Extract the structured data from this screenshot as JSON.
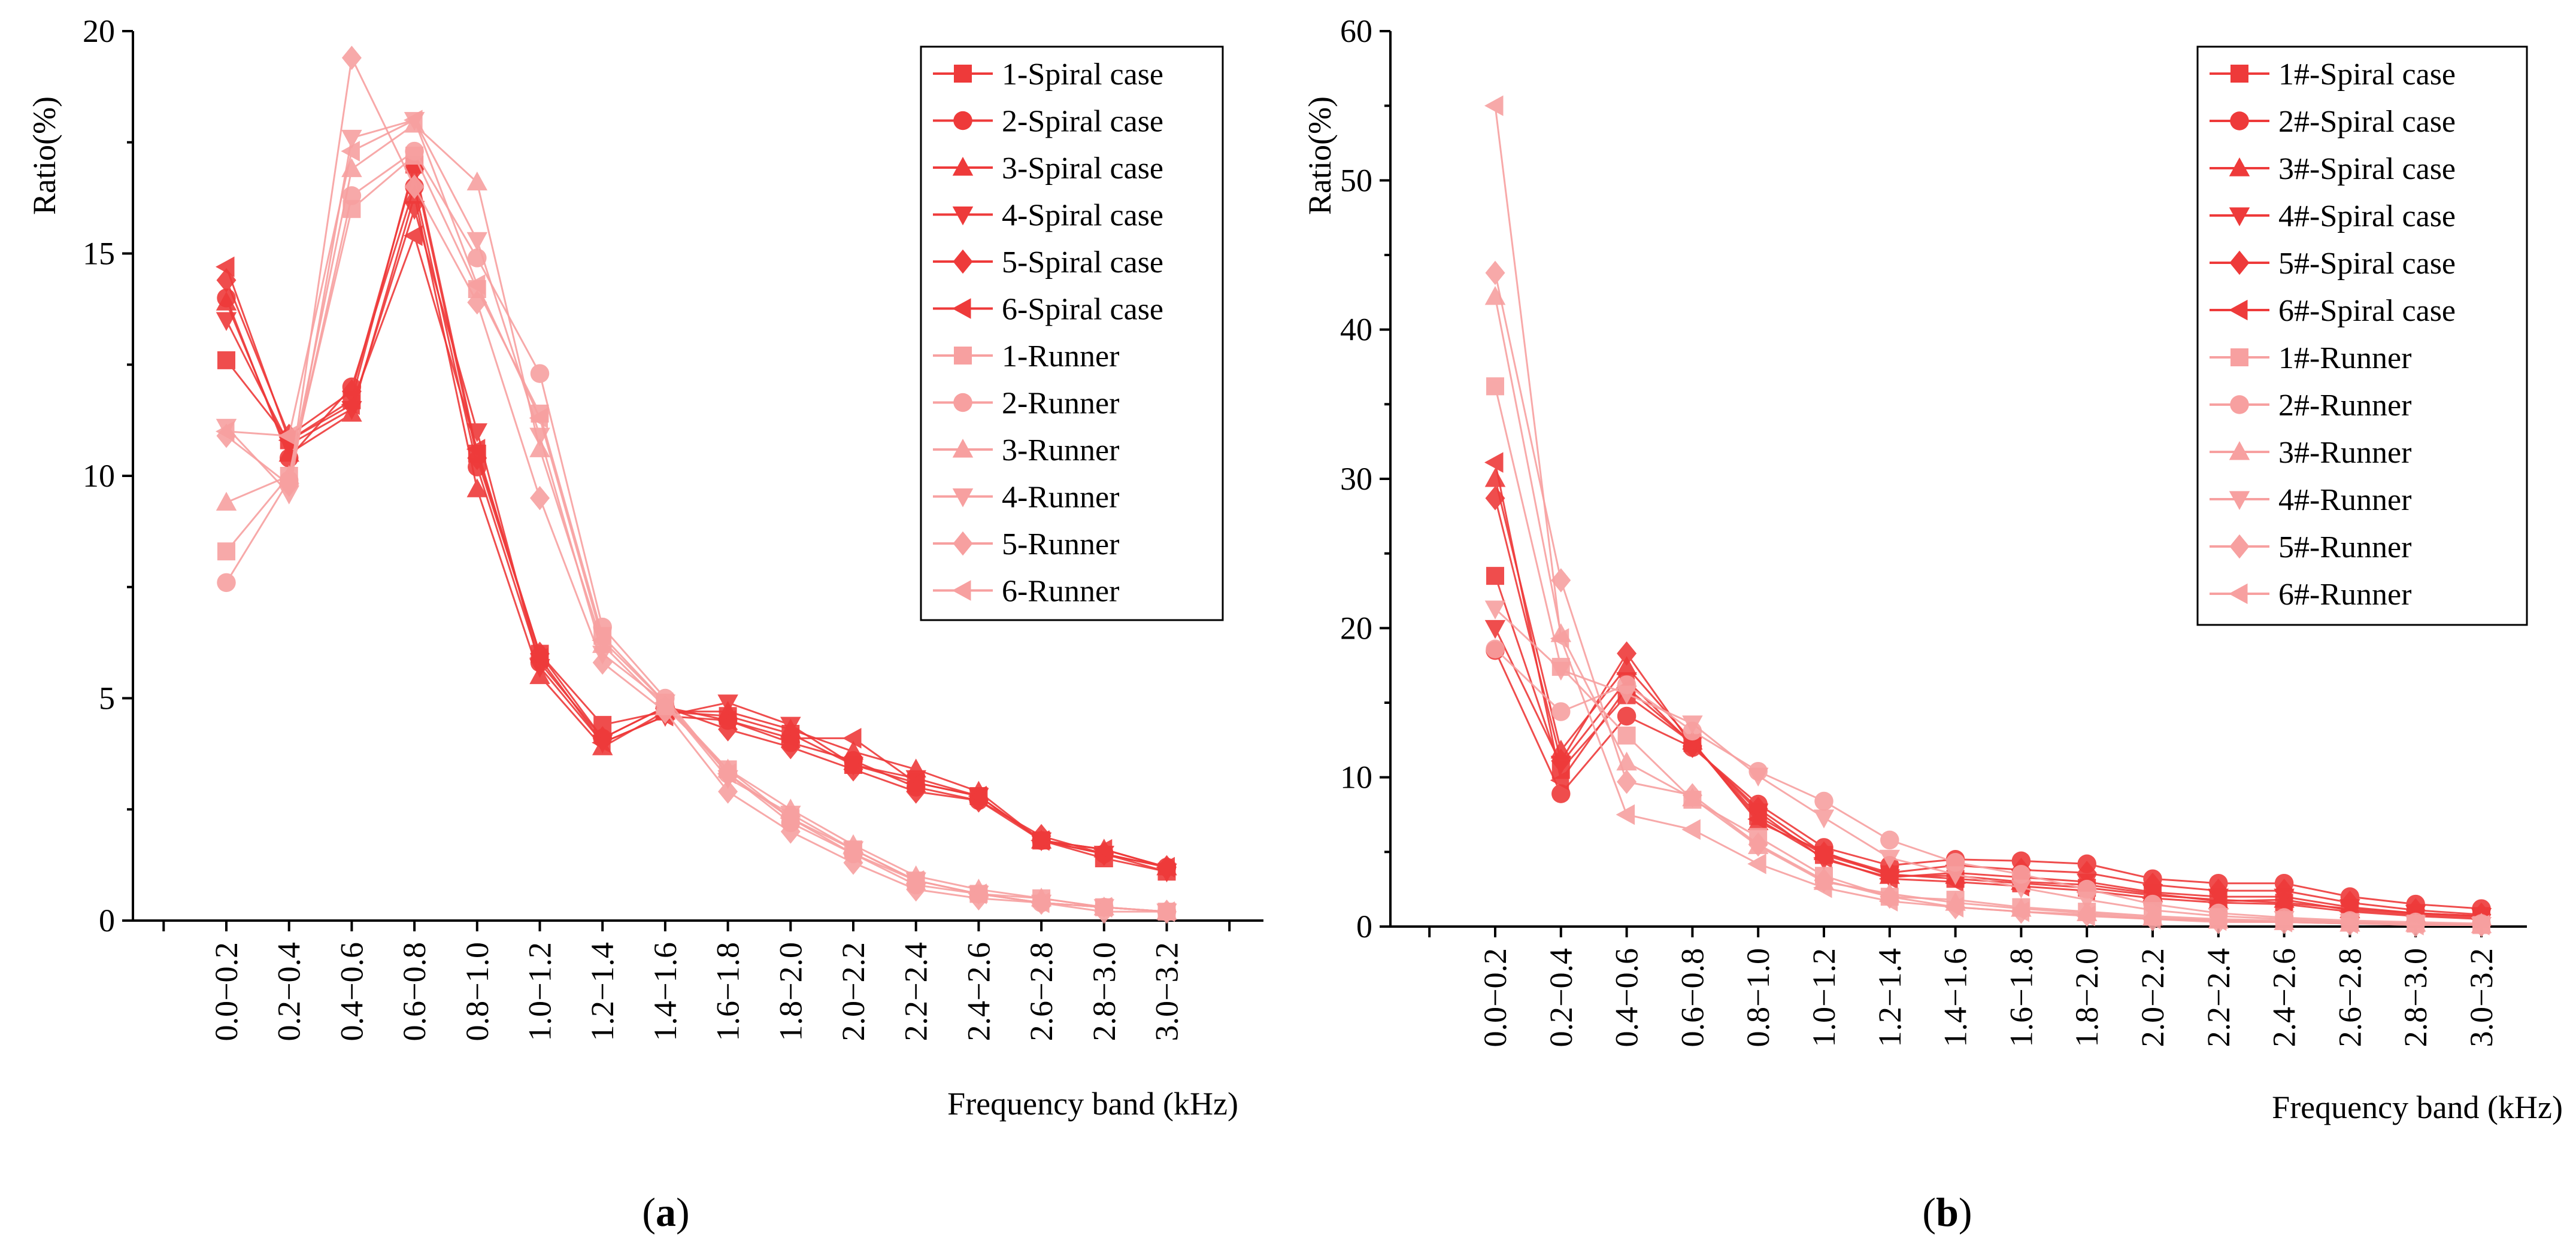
{
  "chart_data": [
    {
      "type": "line",
      "panel_label": "a",
      "xlabel": "Frequency band (kHz)",
      "ylabel": "Ratio(%)",
      "ylim": [
        0,
        20
      ],
      "yticks": [
        0,
        5,
        10,
        15,
        20
      ],
      "grid": false,
      "legend_position": "top-right",
      "categories": [
        "0.0−0.2",
        "0.2−0.4",
        "0.4−0.6",
        "0.6−0.8",
        "0.8−1.0",
        "1.0−1.2",
        "1.2−1.4",
        "1.4−1.6",
        "1.6−1.8",
        "1.8−2.0",
        "2.0−2.2",
        "2.2−2.4",
        "2.4−2.6",
        "2.6−2.8",
        "2.8−3.0",
        "3.0−3.2"
      ],
      "series": [
        {
          "name": "1-Spiral case",
          "marker": "square",
          "color": "#ee3a3a",
          "values": [
            12.6,
            10.8,
            11.7,
            17.0,
            10.5,
            6.0,
            4.4,
            4.7,
            4.6,
            4.2,
            3.5,
            3.1,
            2.8,
            1.8,
            1.4,
            1.1
          ]
        },
        {
          "name": "2-Spiral case",
          "marker": "circle",
          "color": "#ee3a3a",
          "values": [
            14.0,
            10.4,
            12.0,
            16.5,
            10.2,
            5.8,
            4.1,
            4.8,
            4.5,
            4.0,
            3.6,
            3.0,
            2.7,
            1.8,
            1.5,
            1.2
          ]
        },
        {
          "name": "3-Spiral case",
          "marker": "triangle-up",
          "color": "#ee3a3a",
          "values": [
            13.9,
            10.5,
            11.4,
            16.3,
            9.7,
            5.5,
            3.9,
            4.7,
            4.7,
            4.3,
            3.8,
            3.4,
            2.9,
            1.8,
            1.6,
            1.2
          ]
        },
        {
          "name": "4-Spiral case",
          "marker": "triangle-down",
          "color": "#ee3a3a",
          "values": [
            13.5,
            10.7,
            11.5,
            16.0,
            11.0,
            5.7,
            4.0,
            4.6,
            4.9,
            4.4,
            3.5,
            3.2,
            2.8,
            1.8,
            1.5,
            1.1
          ]
        },
        {
          "name": "5-Spiral case",
          "marker": "diamond",
          "color": "#ee3a3a",
          "values": [
            14.4,
            10.9,
            11.9,
            16.9,
            10.4,
            6.0,
            4.1,
            4.8,
            4.3,
            3.9,
            3.4,
            2.9,
            2.7,
            1.9,
            1.5,
            1.2
          ]
        },
        {
          "name": "6-Spiral case",
          "marker": "triangle-left",
          "color": "#ee3a3a",
          "values": [
            14.7,
            10.8,
            11.6,
            15.4,
            10.6,
            5.9,
            4.0,
            4.6,
            4.5,
            4.1,
            4.1,
            3.1,
            2.8,
            1.8,
            1.6,
            1.2
          ]
        },
        {
          "name": "1-Runner",
          "marker": "square",
          "color": "#f7a0a0",
          "values": [
            8.3,
            10.0,
            16.0,
            17.2,
            14.2,
            11.4,
            6.4,
            4.9,
            3.4,
            2.3,
            1.6,
            0.9,
            0.6,
            0.5,
            0.3,
            0.2
          ]
        },
        {
          "name": "2-Runner",
          "marker": "circle",
          "color": "#f7a0a0",
          "values": [
            7.6,
            9.9,
            16.3,
            17.3,
            14.9,
            12.3,
            6.6,
            5.0,
            3.3,
            2.2,
            1.5,
            0.8,
            0.6,
            0.4,
            0.3,
            0.2
          ]
        },
        {
          "name": "3-Runner",
          "marker": "triangle-up",
          "color": "#f7a0a0",
          "values": [
            9.4,
            10.0,
            16.9,
            17.9,
            16.6,
            10.6,
            6.2,
            4.8,
            3.4,
            2.5,
            1.7,
            1.0,
            0.7,
            0.5,
            0.3,
            0.2
          ]
        },
        {
          "name": "4-Runner",
          "marker": "triangle-down",
          "color": "#f7a0a0",
          "values": [
            11.1,
            9.6,
            17.6,
            18.0,
            15.3,
            10.9,
            6.0,
            4.9,
            3.2,
            2.4,
            1.6,
            0.9,
            0.6,
            0.4,
            0.3,
            0.2
          ]
        },
        {
          "name": "5-Runner",
          "marker": "diamond",
          "color": "#f7a0a0",
          "values": [
            10.9,
            9.8,
            19.4,
            16.5,
            13.9,
            9.5,
            5.8,
            4.7,
            2.9,
            2.0,
            1.3,
            0.7,
            0.5,
            0.4,
            0.2,
            0.2
          ]
        },
        {
          "name": "6-Runner",
          "marker": "triangle-left",
          "color": "#f7a0a0",
          "values": [
            11.0,
            10.9,
            17.3,
            18.0,
            14.3,
            11.3,
            6.3,
            4.9,
            3.3,
            2.3,
            1.5,
            0.9,
            0.6,
            0.4,
            0.3,
            0.2
          ]
        }
      ]
    },
    {
      "type": "line",
      "panel_label": "b",
      "xlabel": "Frequency band (kHz)",
      "ylabel": "Ratio(%)",
      "ylim": [
        0,
        60
      ],
      "yticks": [
        0,
        10,
        20,
        30,
        40,
        50,
        60
      ],
      "grid": false,
      "legend_position": "top-right",
      "categories": [
        "0.0−0.2",
        "0.2−0.4",
        "0.4−0.6",
        "0.6−0.8",
        "0.8−1.0",
        "1.0−1.2",
        "1.2−1.4",
        "1.4−1.6",
        "1.6−1.8",
        "1.8−2.0",
        "2.0−2.2",
        "2.2−2.4",
        "2.4−2.6",
        "2.6−2.8",
        "2.8−3.0",
        "3.0−3.2"
      ],
      "series": [
        {
          "name": "1#-Spiral case",
          "marker": "square",
          "color": "#ee3a3a",
          "values": [
            23.5,
            10.5,
            15.5,
            12.3,
            7.4,
            4.8,
            3.5,
            3.2,
            2.9,
            2.6,
            2.1,
            1.8,
            1.6,
            1.2,
            0.9,
            0.7
          ]
        },
        {
          "name": "2#-Spiral case",
          "marker": "circle",
          "color": "#ee3a3a",
          "values": [
            18.5,
            8.9,
            14.1,
            12.0,
            8.2,
            5.3,
            4.1,
            4.5,
            4.4,
            4.2,
            3.2,
            2.9,
            2.9,
            2.0,
            1.5,
            1.2
          ]
        },
        {
          "name": "3#-Spiral case",
          "marker": "triangle-up",
          "color": "#ee3a3a",
          "values": [
            30.0,
            11.8,
            17.4,
            12.4,
            7.0,
            5.0,
            3.4,
            3.4,
            3.0,
            2.8,
            2.2,
            1.7,
            1.8,
            1.1,
            0.8,
            0.6
          ]
        },
        {
          "name": "4#-Spiral case",
          "marker": "triangle-down",
          "color": "#ee3a3a",
          "values": [
            20.0,
            10.9,
            16.5,
            12.2,
            7.7,
            4.5,
            3.3,
            3.6,
            3.3,
            3.0,
            2.3,
            2.0,
            2.0,
            1.3,
            0.9,
            0.7
          ]
        },
        {
          "name": "5#-Spiral case",
          "marker": "diamond",
          "color": "#ee3a3a",
          "values": [
            28.7,
            11.1,
            18.3,
            12.1,
            7.9,
            4.9,
            3.6,
            4.1,
            3.8,
            3.6,
            2.8,
            2.4,
            2.4,
            1.6,
            1.1,
            0.8
          ]
        },
        {
          "name": "6#-Spiral case",
          "marker": "triangle-left",
          "color": "#ee3a3a",
          "values": [
            31.1,
            9.8,
            16.0,
            12.3,
            7.2,
            4.6,
            3.2,
            3.0,
            2.7,
            2.4,
            1.9,
            1.6,
            1.5,
            1.0,
            0.7,
            0.5
          ]
        },
        {
          "name": "1#-Runner",
          "marker": "square",
          "color": "#f7a0a0",
          "values": [
            36.2,
            17.4,
            12.8,
            8.5,
            6.0,
            3.4,
            2.0,
            1.8,
            1.3,
            1.0,
            0.7,
            0.5,
            0.4,
            0.3,
            0.2,
            0.1
          ]
        },
        {
          "name": "2#-Runner",
          "marker": "circle",
          "color": "#f7a0a0",
          "values": [
            18.6,
            14.4,
            16.2,
            13.1,
            10.4,
            8.4,
            5.8,
            4.3,
            3.5,
            2.5,
            1.5,
            0.9,
            0.6,
            0.4,
            0.3,
            0.2
          ]
        },
        {
          "name": "3#-Runner",
          "marker": "triangle-up",
          "color": "#f7a0a0",
          "values": [
            42.2,
            19.6,
            11.0,
            8.6,
            5.4,
            3.0,
            2.2,
            1.6,
            1.2,
            0.9,
            0.6,
            0.4,
            0.3,
            0.2,
            0.2,
            0.1
          ]
        },
        {
          "name": "4#-Runner",
          "marker": "triangle-down",
          "color": "#f7a0a0",
          "values": [
            21.3,
            17.2,
            15.6,
            13.6,
            10.1,
            7.3,
            4.6,
            3.5,
            2.6,
            1.8,
            1.1,
            0.7,
            0.5,
            0.3,
            0.2,
            0.1
          ]
        },
        {
          "name": "5#-Runner",
          "marker": "diamond",
          "color": "#f7a0a0",
          "values": [
            43.8,
            23.2,
            9.7,
            8.8,
            5.5,
            3.1,
            2.0,
            1.3,
            1.0,
            0.8,
            0.5,
            0.3,
            0.3,
            0.2,
            0.1,
            0.1
          ]
        },
        {
          "name": "6#-Runner",
          "marker": "triangle-left",
          "color": "#f7a0a0",
          "values": [
            55.0,
            19.3,
            7.5,
            6.5,
            4.2,
            2.6,
            1.7,
            1.3,
            1.0,
            0.7,
            0.5,
            0.4,
            0.3,
            0.2,
            0.1,
            0.1
          ]
        }
      ]
    }
  ]
}
